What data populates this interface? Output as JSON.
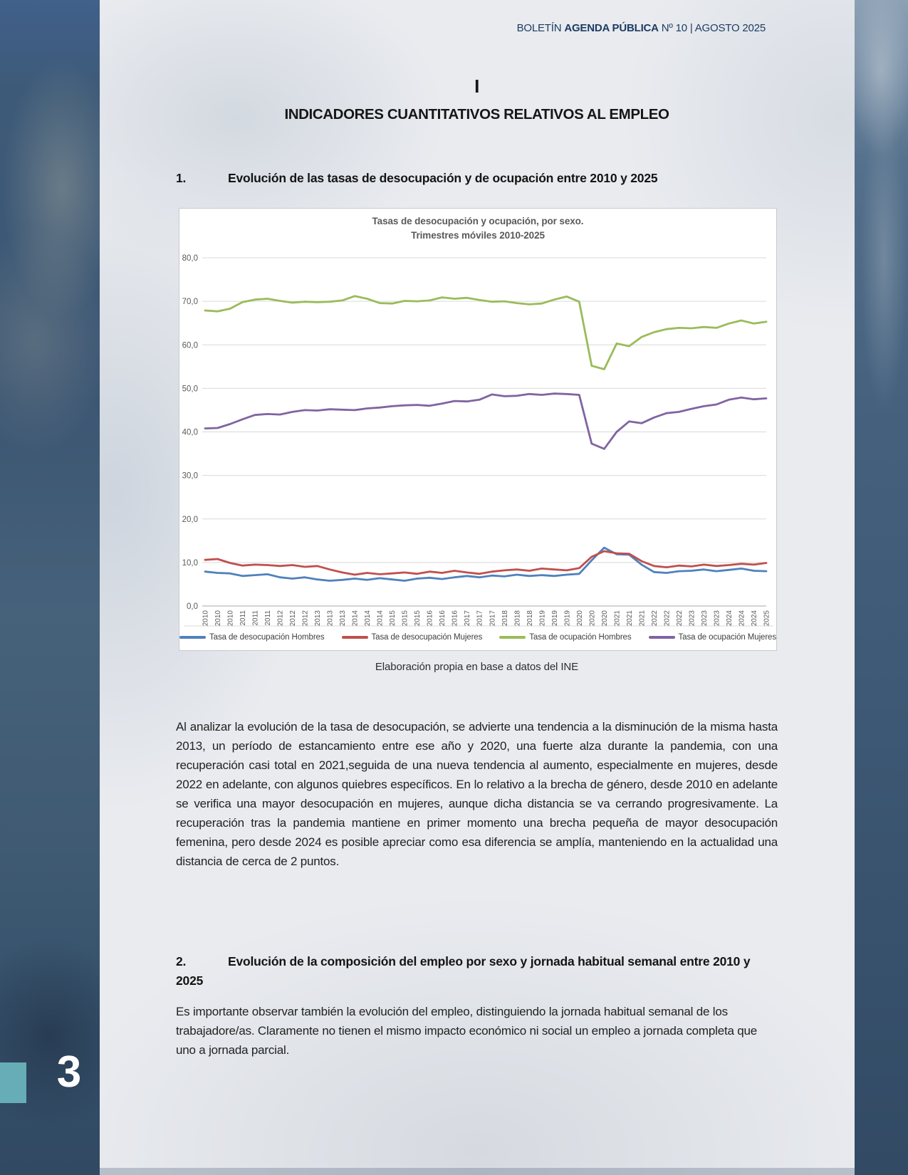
{
  "header": {
    "prefix": "BOLETÍN ",
    "name": "AGENDA PÚBLICA",
    "suffix": " Nº 10 | AGOSTO 2025"
  },
  "section": {
    "numeral": "I",
    "title": "INDICADORES CUANTITATIVOS RELATIVOS AL EMPLEO"
  },
  "heading1": {
    "number": "1.",
    "text": "Evolución de las tasas de desocupación y de ocupación entre 2010 y 2025"
  },
  "heading2": {
    "number": "2.",
    "text": "Evolución de la composición del empleo por sexo y jornada habitual semanal entre 2010 y 2025"
  },
  "chart_caption": "Elaboración propia en base a datos del INE",
  "paragraph1": "Al analizar la evolución de la tasa de desocupación, se advierte una tendencia a la disminución de la misma hasta 2013, un período de estancamiento entre ese año y 2020, una fuerte alza durante la pandemia, con una recuperación casi total en 2021,seguida de una nueva tendencia al aumento, especialmente en mujeres, desde 2022 en adelante, con algunos quiebres específicos. En lo relativo a la brecha de género, desde 2010 en adelante se verifica una mayor desocupación en mujeres, aunque dicha distancia se va cerrando progresivamente. La recuperación tras la pandemia mantiene en primer momento una brecha pequeña de mayor desocupación femenina, pero desde 2024 es posible apreciar como esa diferencia se amplía, manteniendo en la actualidad una distancia de cerca de 2 puntos.",
  "paragraph2": "Es importante observar también la evolución del empleo, distinguiendo la jornada habitual semanal de los trabajadore/as. Claramente no tienen el mismo impacto económico ni social un empleo a jornada completa que uno a jornada parcial.",
  "page_number": "3",
  "colors": {
    "band_blue": "#3c5673",
    "accent_teal": "#67adb8",
    "header_navy": "#1d3c63",
    "series_desocupacion_hombres": "#4F81BD",
    "series_desocupacion_mujeres": "#C0504D",
    "series_ocupacion_hombres": "#9BBB59",
    "series_ocupacion_mujeres": "#8064A2"
  },
  "chart_data": {
    "type": "line",
    "title": "Tasas de desocupación y ocupación, por sexo.",
    "subtitle": "Trimestres móviles 2010-2025",
    "ylim": [
      0,
      80
    ],
    "ytick_step": 10,
    "y_tick_labels": [
      "0,0",
      "10,0",
      "20,0",
      "30,0",
      "40,0",
      "50,0",
      "60,0",
      "70,0",
      "80,0"
    ],
    "grid": true,
    "legend_position": "bottom",
    "x_labels": [
      "2010",
      "2010",
      "2010",
      "2011",
      "2011",
      "2011",
      "2012",
      "2012",
      "2012",
      "2013",
      "2013",
      "2013",
      "2014",
      "2014",
      "2014",
      "2015",
      "2015",
      "2015",
      "2016",
      "2016",
      "2016",
      "2017",
      "2017",
      "2017",
      "2018",
      "2018",
      "2018",
      "2019",
      "2019",
      "2019",
      "2020",
      "2020",
      "2020",
      "2021",
      "2021",
      "2021",
      "2022",
      "2022",
      "2022",
      "2023",
      "2023",
      "2023",
      "2024",
      "2024",
      "2024",
      "2025"
    ],
    "series": [
      {
        "name": "Tasa de desocupación Hombres",
        "color": "#4F81BD",
        "values": [
          7.9,
          7.6,
          7.5,
          6.9,
          7.1,
          7.3,
          6.6,
          6.3,
          6.6,
          6.1,
          5.8,
          6.0,
          6.3,
          6.0,
          6.4,
          6.1,
          5.8,
          6.3,
          6.5,
          6.2,
          6.6,
          6.9,
          6.6,
          7.0,
          6.8,
          7.2,
          6.9,
          7.1,
          6.9,
          7.2,
          7.4,
          10.5,
          13.4,
          11.9,
          11.8,
          9.5,
          7.8,
          7.6,
          8.0,
          8.1,
          8.4,
          8.0,
          8.3,
          8.6,
          8.1,
          8.0
        ]
      },
      {
        "name": "Tasa de desocupación Mujeres",
        "color": "#C0504D",
        "values": [
          10.6,
          10.8,
          9.9,
          9.3,
          9.5,
          9.4,
          9.2,
          9.4,
          9.0,
          9.2,
          8.4,
          7.7,
          7.2,
          7.6,
          7.3,
          7.5,
          7.7,
          7.4,
          7.9,
          7.6,
          8.1,
          7.7,
          7.4,
          7.9,
          8.2,
          8.4,
          8.1,
          8.6,
          8.4,
          8.2,
          8.7,
          11.3,
          12.6,
          12.1,
          12.0,
          10.3,
          9.2,
          8.9,
          9.3,
          9.1,
          9.5,
          9.2,
          9.4,
          9.7,
          9.5,
          9.9
        ]
      },
      {
        "name": "Tasa de ocupación Hombres",
        "color": "#9BBB59",
        "values": [
          67.9,
          67.7,
          68.3,
          69.8,
          70.4,
          70.6,
          70.1,
          69.7,
          69.9,
          69.8,
          69.9,
          70.2,
          71.2,
          70.6,
          69.6,
          69.5,
          70.1,
          70.0,
          70.2,
          70.9,
          70.6,
          70.8,
          70.3,
          69.9,
          70.0,
          69.6,
          69.3,
          69.5,
          70.4,
          71.1,
          69.9,
          55.2,
          54.4,
          60.3,
          59.7,
          61.8,
          62.9,
          63.6,
          63.9,
          63.8,
          64.1,
          63.9,
          64.9,
          65.6,
          64.9,
          65.3
        ]
      },
      {
        "name": "Tasa de ocupación Mujeres",
        "color": "#8064A2",
        "values": [
          40.8,
          40.9,
          41.8,
          42.9,
          43.9,
          44.1,
          44.0,
          44.6,
          45.0,
          44.9,
          45.2,
          45.1,
          45.0,
          45.4,
          45.6,
          45.9,
          46.1,
          46.2,
          46.0,
          46.5,
          47.1,
          47.0,
          47.4,
          48.6,
          48.2,
          48.3,
          48.7,
          48.5,
          48.8,
          48.7,
          48.5,
          37.3,
          36.1,
          40.0,
          42.4,
          42.0,
          43.3,
          44.3,
          44.6,
          45.3,
          45.9,
          46.3,
          47.4,
          47.9,
          47.5,
          47.7
        ]
      }
    ]
  }
}
